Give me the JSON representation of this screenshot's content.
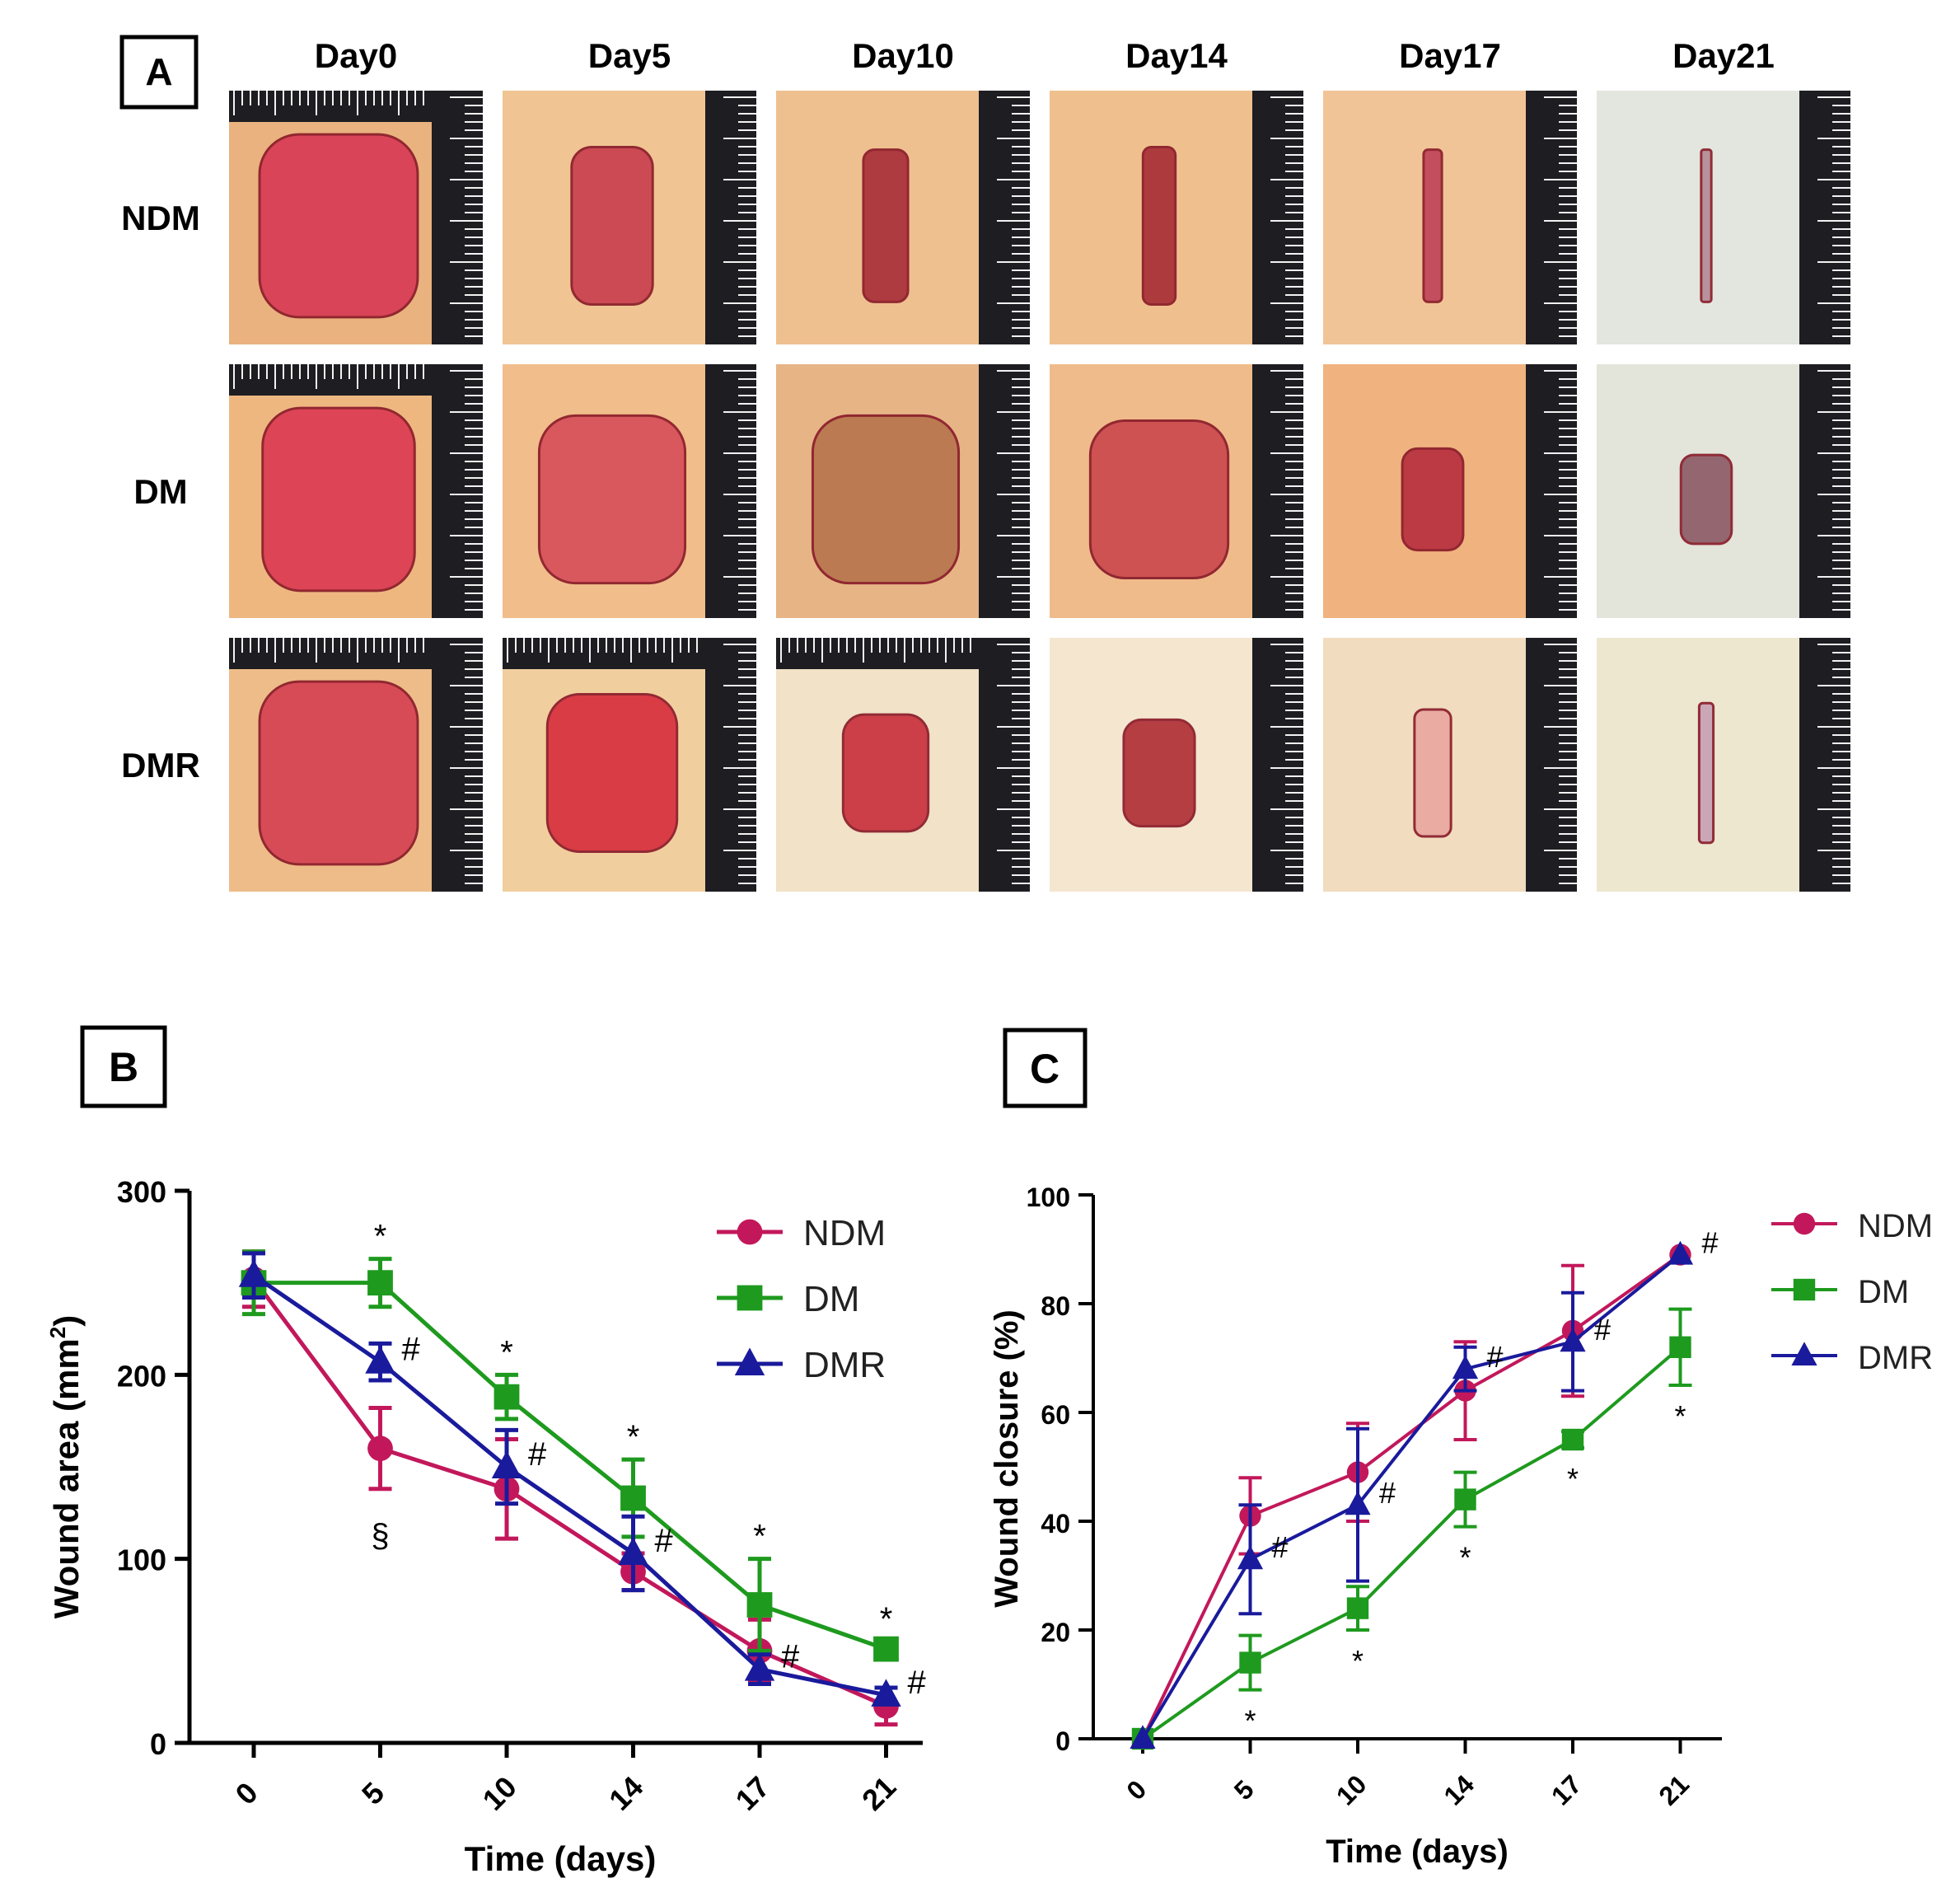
{
  "panel_a": {
    "label": "A",
    "days": [
      "Day0",
      "Day5",
      "Day10",
      "Day14",
      "Day17",
      "Day21"
    ],
    "groups": [
      "NDM",
      "DM",
      "DMR"
    ],
    "image_descriptions_note": ""
  },
  "chart_data": [
    {
      "type": "line",
      "panel_label": "B",
      "title": "",
      "xlabel": "Time (days)",
      "ylabel": "Wound area (mm2)",
      "ylabel_main": "Wound area (mm",
      "ylabel_sup": "2",
      "ylabel_end": ")",
      "x": [
        0,
        5,
        10,
        14,
        17,
        21
      ],
      "x_tick_labels": [
        "0",
        "5",
        "10",
        "14",
        "17",
        "21"
      ],
      "ylim": [
        0,
        300
      ],
      "y_ticks": [
        0,
        100,
        200,
        300
      ],
      "y_tick_labels": [
        "0",
        "100",
        "200",
        "300"
      ],
      "legend_position": "top-right",
      "series": [
        {
          "name": "NDM",
          "color": "#c2185b",
          "marker": "circle",
          "values": [
            252,
            160,
            138,
            93,
            50,
            20
          ],
          "errors": [
            15,
            22,
            27,
            10,
            17,
            10
          ]
        },
        {
          "name": "DM",
          "color": "#1e9a1e",
          "marker": "square",
          "values": [
            250,
            250,
            188,
            133,
            75,
            51
          ],
          "errors": [
            17,
            13,
            12,
            21,
            25,
            4
          ]
        },
        {
          "name": "DMR",
          "color": "#1a1a9c",
          "marker": "triangle",
          "values": [
            254,
            207,
            150,
            103,
            40,
            26
          ],
          "errors": [
            12,
            10,
            20,
            20,
            8,
            4
          ]
        }
      ],
      "annotations": [
        {
          "text": "*",
          "series": "DM",
          "x": 5,
          "placement": "above"
        },
        {
          "text": "*",
          "series": "DM",
          "x": 10,
          "placement": "above"
        },
        {
          "text": "*",
          "series": "DM",
          "x": 14,
          "placement": "above"
        },
        {
          "text": "*",
          "series": "DM",
          "x": 17,
          "placement": "above"
        },
        {
          "text": "*",
          "series": "DM",
          "x": 21,
          "placement": "above"
        },
        {
          "text": "#",
          "series": "DMR",
          "x": 5,
          "placement": "right"
        },
        {
          "text": "#",
          "series": "DMR",
          "x": 10,
          "placement": "right"
        },
        {
          "text": "#",
          "series": "DMR",
          "x": 14,
          "placement": "right"
        },
        {
          "text": "#",
          "series": "DMR",
          "x": 17,
          "placement": "right"
        },
        {
          "text": "#",
          "series": "DMR",
          "x": 21,
          "placement": "right"
        },
        {
          "text": "§",
          "series": "NDM",
          "x": 5,
          "placement": "below"
        }
      ]
    },
    {
      "type": "line",
      "panel_label": "C",
      "title": "",
      "xlabel": "Time (days)",
      "ylabel": "Wound closure (%)",
      "x": [
        0,
        5,
        10,
        14,
        17,
        21
      ],
      "x_tick_labels": [
        "0",
        "5",
        "10",
        "14",
        "17",
        "21"
      ],
      "ylim": [
        0,
        100
      ],
      "y_ticks": [
        0,
        20,
        40,
        60,
        80,
        100
      ],
      "y_tick_labels": [
        "0",
        "20",
        "40",
        "60",
        "80",
        "100"
      ],
      "legend_position": "top-right",
      "series": [
        {
          "name": "NDM",
          "color": "#c2185b",
          "marker": "circle",
          "values": [
            0,
            41,
            49,
            64,
            75,
            89
          ],
          "errors": [
            0,
            7,
            9,
            9,
            12,
            0
          ]
        },
        {
          "name": "DM",
          "color": "#1e9a1e",
          "marker": "square",
          "values": [
            0,
            14,
            24,
            44,
            55,
            72
          ],
          "errors": [
            0,
            5,
            4,
            5,
            1.5,
            7
          ]
        },
        {
          "name": "DMR",
          "color": "#1a1a9c",
          "marker": "triangle",
          "values": [
            0,
            33,
            43,
            68,
            73,
            89
          ],
          "errors": [
            0,
            10,
            14,
            4,
            9,
            0
          ]
        }
      ],
      "annotations": [
        {
          "text": "*",
          "series": "DM",
          "x": 5,
          "placement": "below"
        },
        {
          "text": "*",
          "series": "DM",
          "x": 10,
          "placement": "below"
        },
        {
          "text": "*",
          "series": "DM",
          "x": 14,
          "placement": "below"
        },
        {
          "text": "*",
          "series": "DM",
          "x": 17,
          "placement": "below"
        },
        {
          "text": "*",
          "series": "DM",
          "x": 21,
          "placement": "below"
        },
        {
          "text": "#",
          "series": "DMR",
          "x": 5,
          "placement": "right"
        },
        {
          "text": "#",
          "series": "DMR",
          "x": 10,
          "placement": "right"
        },
        {
          "text": "#",
          "series": "DMR",
          "x": 14,
          "placement": "right"
        },
        {
          "text": "#",
          "series": "DMR",
          "x": 17,
          "placement": "right"
        },
        {
          "text": "#",
          "series": "DMR",
          "x": 21,
          "placement": "right"
        }
      ]
    }
  ]
}
